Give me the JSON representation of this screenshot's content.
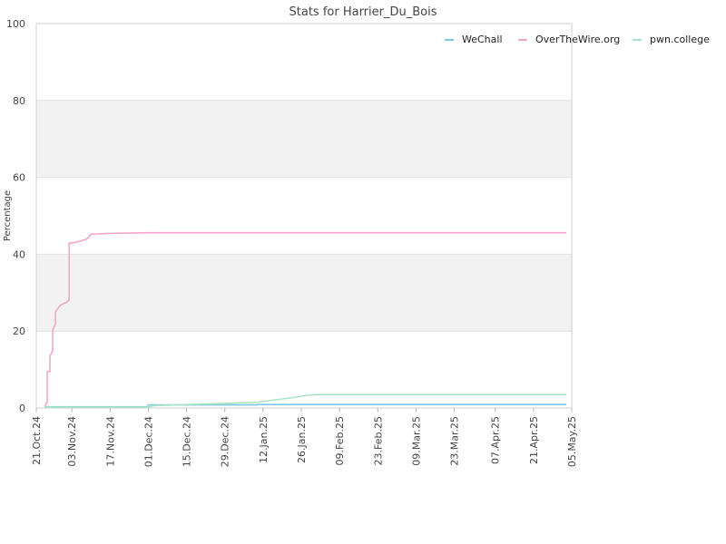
{
  "chart_data": {
    "type": "line",
    "title": "Stats for Harrier_Du_Bois",
    "xlabel": "",
    "ylabel": "Percentage",
    "xlim": [
      "2024-10-21",
      "2025-05-05"
    ],
    "ylim": [
      0,
      100
    ],
    "y_ticks": [
      0,
      20,
      40,
      60,
      80,
      100
    ],
    "x_ticks": [
      {
        "date": "2024-10-21",
        "label": "21.Oct.24"
      },
      {
        "date": "2024-11-03",
        "label": "03.Nov.24"
      },
      {
        "date": "2024-11-17",
        "label": "17.Nov.24"
      },
      {
        "date": "2024-12-01",
        "label": "01.Dec.24"
      },
      {
        "date": "2024-12-15",
        "label": "15.Dec.24"
      },
      {
        "date": "2024-12-29",
        "label": "29.Dec.24"
      },
      {
        "date": "2025-01-12",
        "label": "12.Jan.25"
      },
      {
        "date": "2025-01-26",
        "label": "26.Jan.25"
      },
      {
        "date": "2025-02-09",
        "label": "09.Feb.25"
      },
      {
        "date": "2025-02-23",
        "label": "23.Feb.25"
      },
      {
        "date": "2025-03-09",
        "label": "09.Mar.25"
      },
      {
        "date": "2025-03-23",
        "label": "23.Mar.25"
      },
      {
        "date": "2025-04-07",
        "label": "07.Apr.25"
      },
      {
        "date": "2025-04-21",
        "label": "21.Apr.25"
      },
      {
        "date": "2025-05-05",
        "label": "05.May.25"
      }
    ],
    "grid": true,
    "banded_background": true,
    "legend_position": "top-right",
    "series": [
      {
        "name": "WeChall",
        "color": "#7ec8e3",
        "points": [
          [
            "2024-10-24",
            0.3
          ],
          [
            "2024-12-01",
            0.3
          ],
          [
            "2024-12-01",
            0.8
          ],
          [
            "2025-01-10",
            0.8
          ],
          [
            "2025-01-10",
            0.9
          ],
          [
            "2025-05-03",
            0.9
          ]
        ]
      },
      {
        "name": "OverTheWire.org",
        "color": "#f4a6c8",
        "points": [
          [
            "2024-10-24",
            0.5
          ],
          [
            "2024-10-25",
            1.5
          ],
          [
            "2024-10-25",
            9.5
          ],
          [
            "2024-10-26",
            9.5
          ],
          [
            "2024-10-26",
            13.5
          ],
          [
            "2024-10-27",
            15
          ],
          [
            "2024-10-27",
            20
          ],
          [
            "2024-10-28",
            22
          ],
          [
            "2024-10-28",
            25
          ],
          [
            "2024-10-29",
            26
          ],
          [
            "2024-10-30",
            26.8
          ],
          [
            "2024-11-01",
            27.5
          ],
          [
            "2024-11-02",
            28
          ],
          [
            "2024-11-02",
            42.8
          ],
          [
            "2024-11-05",
            43.2
          ],
          [
            "2024-11-08",
            43.8
          ],
          [
            "2024-11-09",
            44.3
          ],
          [
            "2024-11-10",
            45.2
          ],
          [
            "2024-11-16",
            45.4
          ],
          [
            "2024-12-01",
            45.6
          ],
          [
            "2025-05-03",
            45.6
          ]
        ]
      },
      {
        "name": "pwn.college",
        "color": "#a8e6c3",
        "points": [
          [
            "2024-10-24",
            0.2
          ],
          [
            "2024-12-01",
            0.2
          ],
          [
            "2024-12-03",
            0.6
          ],
          [
            "2024-12-15",
            0.9
          ],
          [
            "2024-12-29",
            1.2
          ],
          [
            "2025-01-10",
            1.5
          ],
          [
            "2025-01-15",
            2.0
          ],
          [
            "2025-01-22",
            2.6
          ],
          [
            "2025-01-26",
            3.1
          ],
          [
            "2025-01-31",
            3.5
          ],
          [
            "2025-05-03",
            3.5
          ]
        ]
      }
    ]
  }
}
